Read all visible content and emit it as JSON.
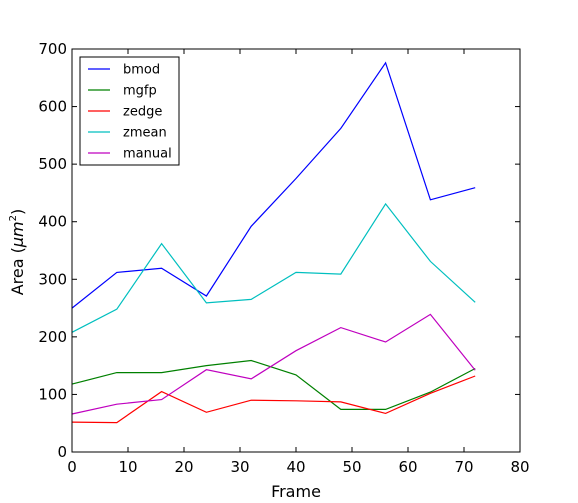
{
  "chart_data": {
    "type": "line",
    "title": "",
    "xlabel": "Frame",
    "ylabel_prefix": "Area (",
    "ylabel_unit_base": "μm",
    "ylabel_unit_exp": "2",
    "ylabel_suffix": ")",
    "xlim": [
      0,
      80
    ],
    "ylim": [
      0,
      700
    ],
    "xticks": [
      0,
      10,
      20,
      30,
      40,
      50,
      60,
      70,
      80
    ],
    "yticks": [
      0,
      100,
      200,
      300,
      400,
      500,
      600,
      700
    ],
    "grid": false,
    "legend_position": "top-left",
    "x": [
      0,
      8,
      16,
      24,
      32,
      40,
      48,
      56,
      64,
      72
    ],
    "series": [
      {
        "name": "bmod",
        "color": "#0000ff",
        "values": [
          250,
          312,
          319,
          271,
          392,
          475,
          562,
          676,
          438,
          459
        ]
      },
      {
        "name": "mgfp",
        "color": "#008000",
        "values": [
          118,
          138,
          138,
          150,
          159,
          134,
          74,
          74,
          104,
          145
        ]
      },
      {
        "name": "zedge",
        "color": "#ff0000",
        "values": [
          52,
          51,
          105,
          69,
          90,
          89,
          87,
          67,
          102,
          132
        ]
      },
      {
        "name": "zmean",
        "color": "#00bfbf",
        "values": [
          208,
          248,
          362,
          259,
          265,
          312,
          309,
          431,
          331,
          260
        ]
      },
      {
        "name": "manual",
        "color": "#bf00bf",
        "values": [
          66,
          83,
          91,
          143,
          127,
          176,
          216,
          191,
          239,
          142
        ]
      }
    ]
  }
}
